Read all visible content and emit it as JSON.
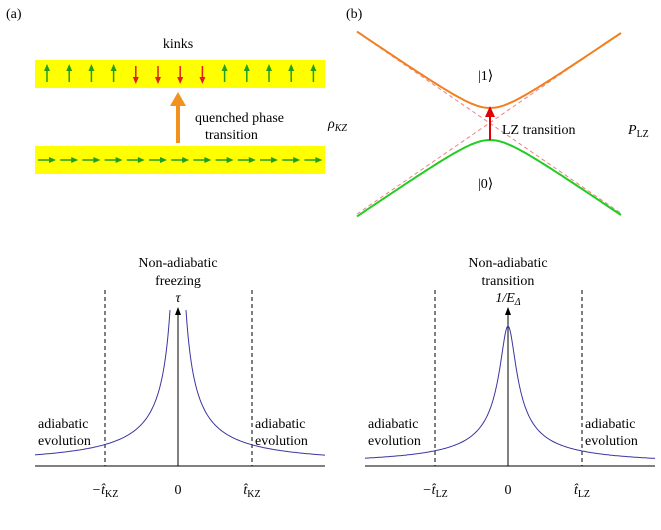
{
  "panel_a": {
    "label": "(a)",
    "kinks": "kinks",
    "quench_line1": "quenched phase",
    "quench_line2": "transition",
    "rho": {
      "main": "ρ",
      "sub": "KZ"
    }
  },
  "panel_b": {
    "label": "(b)",
    "upper_state": "|1⟩",
    "lower_state": "|0⟩",
    "transition": "LZ transition",
    "prob": {
      "main": "P",
      "sub": "LZ"
    }
  },
  "plot_kz": {
    "title_line1": "Non-adiabatic",
    "title_line2": "freezing",
    "axis_label": "τ",
    "left_note": [
      "adiabatic",
      "evolution"
    ],
    "right_note": [
      "adiabatic",
      "evolution"
    ],
    "ticks": [
      {
        "main": "−t̂",
        "sub": "KZ"
      },
      {
        "main": "0"
      },
      {
        "main": "t̂",
        "sub": "KZ"
      }
    ]
  },
  "plot_lz": {
    "title_line1": "Non-adiabatic",
    "title_line2": "transition",
    "axis_label": {
      "main": "1/E",
      "sub": "Δ"
    },
    "left_note": [
      "adiabatic",
      "evolution"
    ],
    "right_note": [
      "adiabatic",
      "evolution"
    ],
    "ticks": [
      {
        "main": "−t̂",
        "sub": "LZ"
      },
      {
        "main": "0"
      },
      {
        "main": "t̂",
        "sub": "LZ"
      }
    ]
  }
}
